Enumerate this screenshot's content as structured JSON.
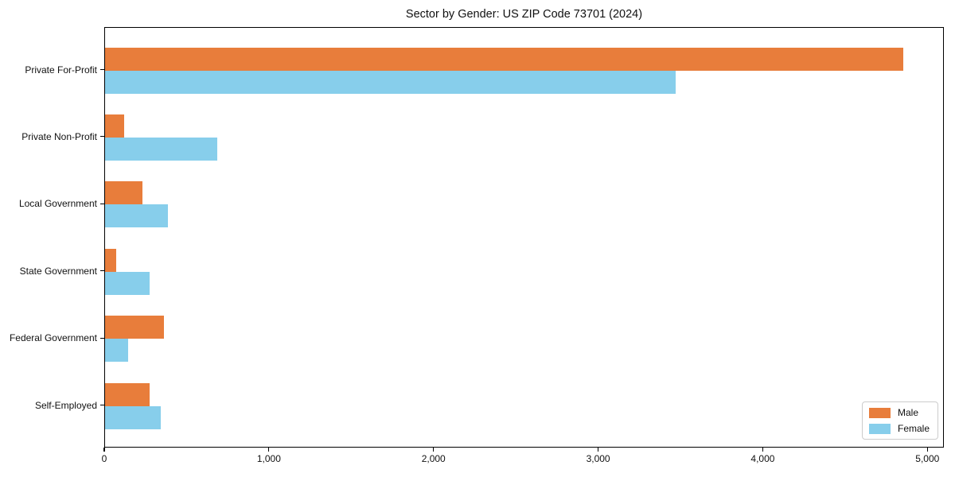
{
  "chart_data": {
    "type": "bar",
    "orientation": "horizontal",
    "title": "Sector by Gender: US ZIP Code 73701 (2024)",
    "categories": [
      "Private For-Profit",
      "Private Non-Profit",
      "Local Government",
      "State Government",
      "Federal Government",
      "Self-Employed"
    ],
    "series": [
      {
        "name": "Male",
        "color": "#E87D3B",
        "values": [
          4850,
          115,
          225,
          70,
          360,
          270
        ]
      },
      {
        "name": "Female",
        "color": "#87CEEB",
        "values": [
          3465,
          680,
          380,
          270,
          140,
          340
        ]
      }
    ],
    "xlabel": "",
    "ylabel": "",
    "xlim": [
      0,
      5100
    ],
    "x_ticks": [
      {
        "value": 0,
        "label": "0"
      },
      {
        "value": 1000,
        "label": "1,000"
      },
      {
        "value": 2000,
        "label": "2,000"
      },
      {
        "value": 3000,
        "label": "3,000"
      },
      {
        "value": 4000,
        "label": "4,000"
      },
      {
        "value": 5000,
        "label": "5,000"
      }
    ],
    "grid": false,
    "legend_position": "lower right"
  },
  "legend": {
    "entries": [
      {
        "label": "Male"
      },
      {
        "label": "Female"
      }
    ]
  }
}
